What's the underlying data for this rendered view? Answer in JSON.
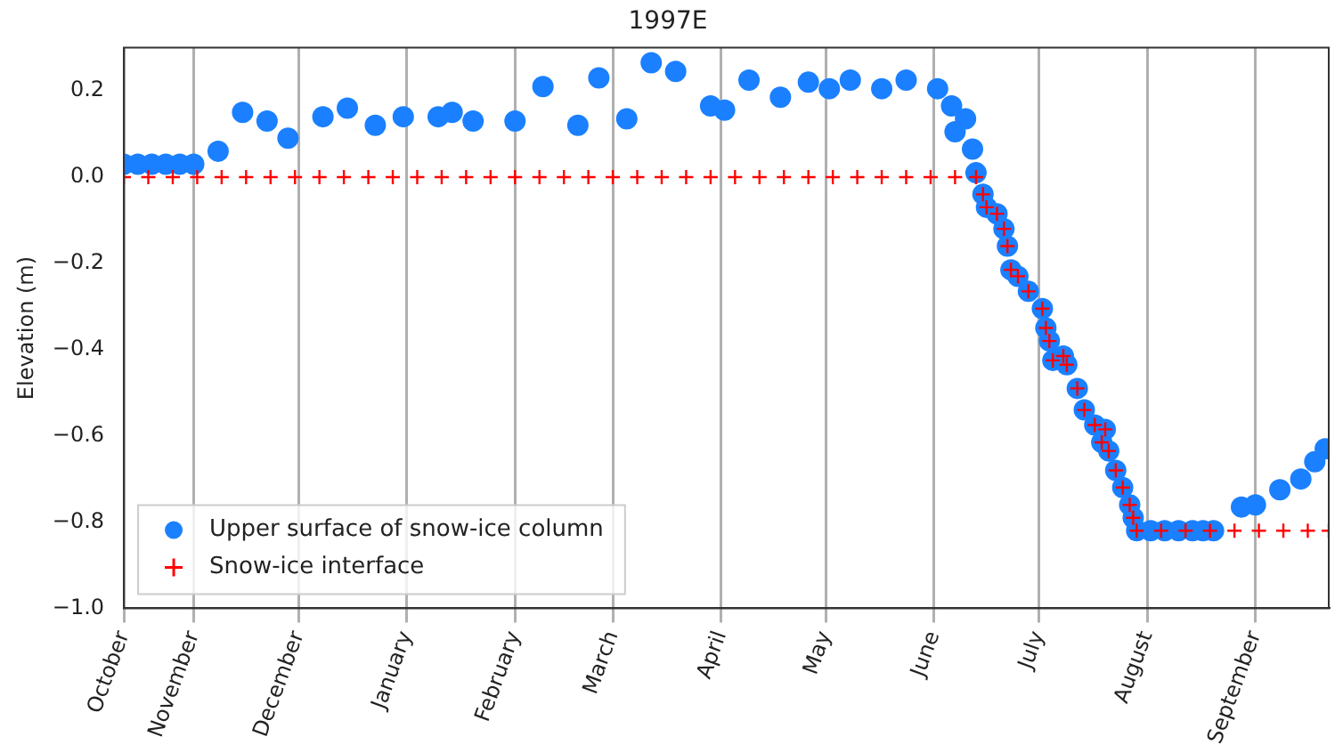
{
  "chart_data": {
    "type": "scatter",
    "title": "1997E",
    "ylabel": "Elevation (m)",
    "xlim": [
      "1996-10-12",
      "1997-09-22"
    ],
    "xticks": [
      {
        "value": "1996-10-12",
        "label": "October"
      },
      {
        "value": "1996-11-01",
        "label": "November"
      },
      {
        "value": "1996-12-01",
        "label": "December"
      },
      {
        "value": "1997-01-01",
        "label": "January"
      },
      {
        "value": "1997-02-01",
        "label": "February"
      },
      {
        "value": "1997-03-01",
        "label": "March"
      },
      {
        "value": "1997-04-01",
        "label": "April"
      },
      {
        "value": "1997-05-01",
        "label": "May"
      },
      {
        "value": "1997-06-01",
        "label": "June"
      },
      {
        "value": "1997-07-01",
        "label": "July"
      },
      {
        "value": "1997-08-01",
        "label": "August"
      },
      {
        "value": "1997-09-01",
        "label": "September"
      }
    ],
    "ylim": [
      -1.0,
      0.3
    ],
    "yticks": [
      {
        "value": -1.0,
        "label": "−1.0"
      },
      {
        "value": -0.8,
        "label": "−0.8"
      },
      {
        "value": -0.6,
        "label": "−0.6"
      },
      {
        "value": -0.4,
        "label": "−0.4"
      },
      {
        "value": -0.2,
        "label": "−0.2"
      },
      {
        "value": 0,
        "label": "0.0"
      },
      {
        "value": 0.2,
        "label": "0.2"
      }
    ],
    "grid": "x",
    "legend": "bottom left",
    "series": [
      {
        "name": "Upper surface of snow-ice column",
        "color": "#1a80ff",
        "marker": "circle",
        "x": [
          "1996-10-12",
          "1996-10-16",
          "1996-10-20",
          "1996-10-24",
          "1996-10-28",
          "1996-11-01",
          "1996-11-08",
          "1996-11-15",
          "1996-11-22",
          "1996-11-28",
          "1996-12-08",
          "1996-12-15",
          "1996-12-23",
          "1996-12-31",
          "1997-01-10",
          "1997-01-14",
          "1997-01-20",
          "1997-02-01",
          "1997-02-09",
          "1997-02-19",
          "1997-02-25",
          "1997-03-05",
          "1997-03-12",
          "1997-03-19",
          "1997-03-29",
          "1997-04-02",
          "1997-04-09",
          "1997-04-18",
          "1997-04-26",
          "1997-05-02",
          "1997-05-08",
          "1997-05-17",
          "1997-05-24",
          "1997-06-02",
          "1997-06-06",
          "1997-06-07",
          "1997-06-10",
          "1997-06-12",
          "1997-06-13",
          "1997-06-15",
          "1997-06-16",
          "1997-06-19",
          "1997-06-21",
          "1997-06-22",
          "1997-06-23",
          "1997-06-25",
          "1997-06-28",
          "1997-07-02",
          "1997-07-03",
          "1997-07-04",
          "1997-07-05",
          "1997-07-08",
          "1997-07-09",
          "1997-07-12",
          "1997-07-14",
          "1997-07-17",
          "1997-07-19",
          "1997-07-20",
          "1997-07-21",
          "1997-07-23",
          "1997-07-25",
          "1997-07-27",
          "1997-07-28",
          "1997-07-29",
          "1997-08-02",
          "1997-08-06",
          "1997-08-10",
          "1997-08-14",
          "1997-08-17",
          "1997-08-20",
          "1997-08-28",
          "1997-09-01",
          "1997-09-08",
          "1997-09-14",
          "1997-09-18",
          "1997-09-21"
        ],
        "values": [
          0.03,
          0.03,
          0.03,
          0.03,
          0.03,
          0.03,
          0.06,
          0.15,
          0.13,
          0.09,
          0.14,
          0.16,
          0.12,
          0.14,
          0.14,
          0.15,
          0.13,
          0.13,
          0.21,
          0.12,
          0.23,
          0.135,
          0.265,
          0.245,
          0.165,
          0.155,
          0.225,
          0.185,
          0.22,
          0.205,
          0.225,
          0.205,
          0.225,
          0.205,
          0.165,
          0.105,
          0.135,
          0.065,
          0.01,
          -0.04,
          -0.07,
          -0.085,
          -0.12,
          -0.16,
          -0.215,
          -0.23,
          -0.265,
          -0.305,
          -0.35,
          -0.38,
          -0.425,
          -0.415,
          -0.435,
          -0.49,
          -0.54,
          -0.575,
          -0.615,
          -0.585,
          -0.635,
          -0.68,
          -0.72,
          -0.76,
          -0.79,
          -0.82,
          -0.82,
          -0.82,
          -0.82,
          -0.82,
          -0.82,
          -0.82,
          -0.765,
          -0.76,
          -0.725,
          -0.7,
          -0.66,
          -0.63
        ]
      },
      {
        "name": "Snow-ice interface",
        "color": "#ff0000",
        "marker": "cross",
        "x": [
          "1996-10-12",
          "1996-10-19",
          "1996-10-26",
          "1996-11-02",
          "1996-11-09",
          "1996-11-16",
          "1996-11-23",
          "1996-11-30",
          "1996-12-07",
          "1996-12-14",
          "1996-12-21",
          "1996-12-28",
          "1997-01-04",
          "1997-01-11",
          "1997-01-18",
          "1997-01-25",
          "1997-02-01",
          "1997-02-08",
          "1997-02-15",
          "1997-02-22",
          "1997-03-01",
          "1997-03-08",
          "1997-03-15",
          "1997-03-22",
          "1997-03-29",
          "1997-04-05",
          "1997-04-12",
          "1997-04-19",
          "1997-04-26",
          "1997-05-03",
          "1997-05-10",
          "1997-05-17",
          "1997-05-24",
          "1997-05-31",
          "1997-06-07",
          "1997-06-13",
          "1997-06-15",
          "1997-06-16",
          "1997-06-19",
          "1997-06-21",
          "1997-06-22",
          "1997-06-23",
          "1997-06-25",
          "1997-06-28",
          "1997-07-02",
          "1997-07-03",
          "1997-07-04",
          "1997-07-05",
          "1997-07-08",
          "1997-07-09",
          "1997-07-12",
          "1997-07-14",
          "1997-07-17",
          "1997-07-19",
          "1997-07-20",
          "1997-07-21",
          "1997-07-23",
          "1997-07-25",
          "1997-07-27",
          "1997-07-28",
          "1997-07-29",
          "1997-08-05",
          "1997-08-12",
          "1997-08-19",
          "1997-08-26",
          "1997-09-02",
          "1997-09-09",
          "1997-09-16",
          "1997-09-22"
        ],
        "values": [
          0,
          0,
          0,
          0,
          0,
          0,
          0,
          0,
          0,
          0,
          0,
          0,
          0,
          0,
          0,
          0,
          0,
          0,
          0,
          0,
          0,
          0,
          0,
          0,
          0,
          0,
          0,
          0,
          0,
          0,
          0,
          0,
          0,
          0,
          0,
          0,
          -0.04,
          -0.07,
          -0.085,
          -0.12,
          -0.16,
          -0.215,
          -0.23,
          -0.265,
          -0.305,
          -0.35,
          -0.38,
          -0.425,
          -0.415,
          -0.435,
          -0.49,
          -0.54,
          -0.575,
          -0.615,
          -0.585,
          -0.635,
          -0.68,
          -0.72,
          -0.76,
          -0.79,
          -0.82,
          -0.82,
          -0.82,
          -0.82,
          -0.82,
          -0.82,
          -0.82,
          -0.82,
          -0.82
        ]
      }
    ]
  }
}
